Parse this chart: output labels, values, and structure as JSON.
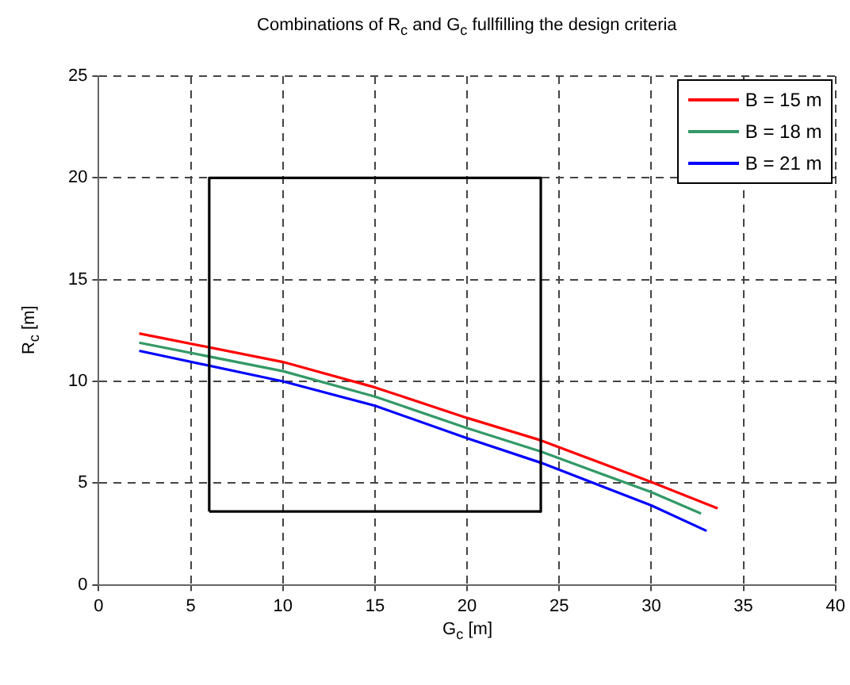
{
  "chart_data": {
    "type": "line",
    "title": "Combinations of R$_{c}$ and G$_{c}$ fullfilling the design criteria",
    "xlabel": "G$_{c}$ [m]",
    "ylabel": "R$_{c}$ [m]",
    "series": [
      {
        "name": "B = 15 m",
        "color": "#ff0000",
        "x": [
          2.2,
          10,
          15,
          20,
          24,
          30,
          33.6
        ],
        "values": [
          12.35,
          10.95,
          9.7,
          8.2,
          7.1,
          5.05,
          3.75
        ]
      },
      {
        "name": "B = 18 m",
        "color": "#339966",
        "x": [
          2.2,
          10,
          15,
          20,
          24,
          30,
          32.7
        ],
        "values": [
          11.9,
          10.5,
          9.25,
          7.7,
          6.55,
          4.55,
          3.5
        ]
      },
      {
        "name": "B = 21 m",
        "color": "#0000ff",
        "x": [
          2.2,
          10,
          15,
          20,
          24,
          30,
          33
        ],
        "values": [
          11.5,
          10,
          8.8,
          7.2,
          6,
          3.9,
          2.65
        ]
      },
      {
        "color": "#000000",
        "x": [
          6,
          6,
          24,
          24
        ],
        "values": [
          3.6,
          20,
          20,
          3.6
        ]
      },
      {
        "color": "#000000",
        "x": [
          6,
          24
        ],
        "values": [
          3.6,
          3.6
        ]
      }
    ],
    "xlim": [
      0,
      40
    ],
    "xticks": [
      0,
      5,
      10,
      15,
      20,
      25,
      30,
      35,
      40
    ],
    "ylim": [
      0,
      25
    ],
    "yticks": [
      0,
      5,
      10,
      15,
      20,
      25
    ],
    "grid": true,
    "legend": "top right",
    "line_style": "solid",
    "marker": "none"
  }
}
